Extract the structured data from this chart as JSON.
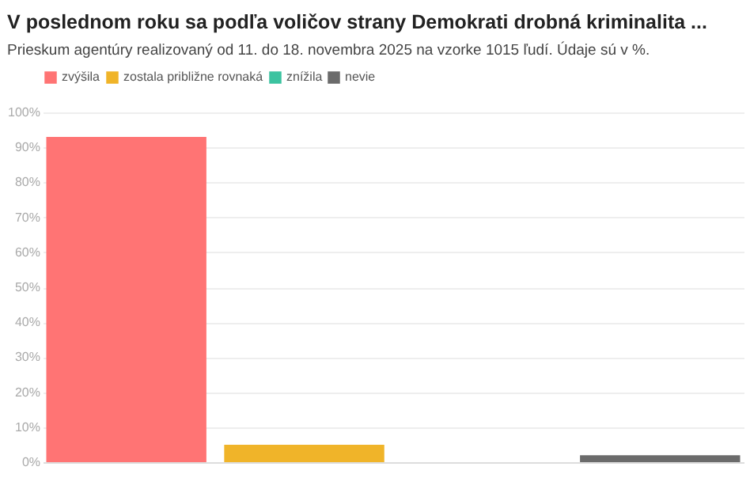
{
  "chart_data": {
    "type": "bar",
    "title": "V poslednom roku sa podľa voličov strany Demokrati drobná kriminalita ...",
    "subtitle": "Prieskum agentúry realizovaný od 11. do 18. novembra 2025 na vzorke 1015 ľudí. Údaje sú v %.",
    "categories": [
      null,
      null,
      null,
      null
    ],
    "series": [
      {
        "name": "zvýšila",
        "color": "#ff7474",
        "values": [
          93,
          null,
          null,
          null
        ]
      },
      {
        "name": "zostala približne rovnaká",
        "color": "#f0b429",
        "values": [
          null,
          5,
          null,
          null
        ]
      },
      {
        "name": "znížila",
        "color": "#3cc3a0",
        "values": [
          null,
          null,
          0,
          null
        ]
      },
      {
        "name": "nevie",
        "color": "#6b6b6b",
        "values": [
          null,
          null,
          null,
          2
        ]
      }
    ],
    "ylim": [
      0,
      100
    ],
    "yticks": [
      {
        "value": 0,
        "label": "0%"
      },
      {
        "value": 10,
        "label": "10%"
      },
      {
        "value": 20,
        "label": "20%"
      },
      {
        "value": 30,
        "label": "30%"
      },
      {
        "value": 40,
        "label": "40%"
      },
      {
        "value": 50,
        "label": "50%"
      },
      {
        "value": 60,
        "label": "60%"
      },
      {
        "value": 70,
        "label": "70%"
      },
      {
        "value": 80,
        "label": "80%"
      },
      {
        "value": 90,
        "label": "90%"
      },
      {
        "value": 100,
        "label": "100%"
      }
    ],
    "grid": "y",
    "legend": "top left",
    "tick_labels": "y"
  }
}
